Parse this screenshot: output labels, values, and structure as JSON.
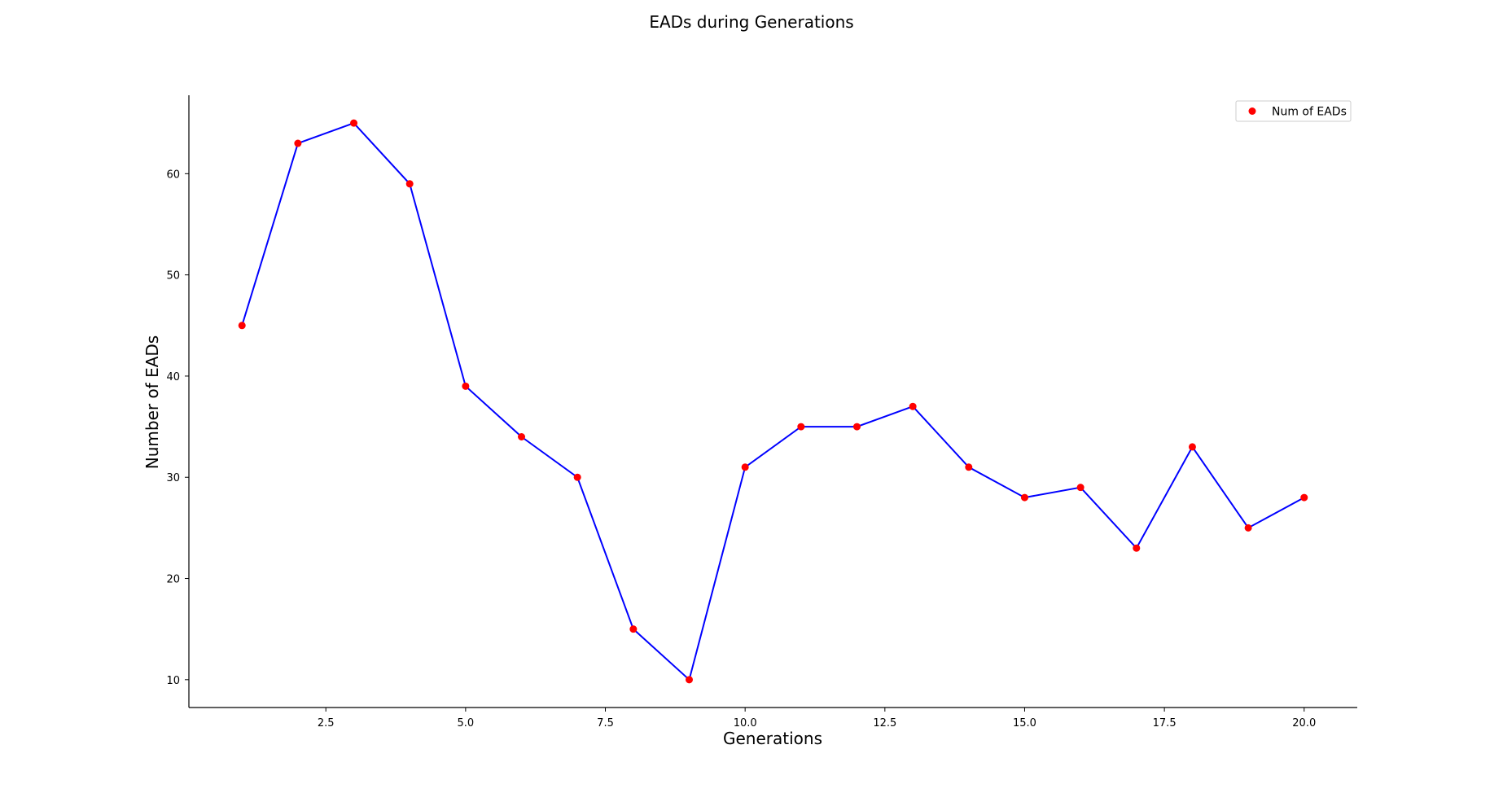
{
  "chart_data": {
    "type": "line",
    "title": "EADs during Generations",
    "xlabel": "Generations",
    "ylabel": "Number of EADs",
    "x": [
      1,
      2,
      3,
      4,
      5,
      6,
      7,
      8,
      9,
      10,
      11,
      12,
      13,
      14,
      15,
      16,
      17,
      18,
      19,
      20
    ],
    "series": [
      {
        "name": "Num of EADs",
        "values": [
          45,
          63,
          65,
          59,
          39,
          34,
          30,
          15,
          10,
          31,
          35,
          35,
          37,
          31,
          28,
          29,
          23,
          33,
          25,
          28
        ],
        "line_color": "#0000ff",
        "marker_color": "#ff0000"
      }
    ],
    "xlim": [
      0.05,
      20.95
    ],
    "ylim": [
      7.25,
      67.75
    ],
    "xticks": [
      2.5,
      5.0,
      7.5,
      10.0,
      12.5,
      15.0,
      17.5,
      20.0
    ],
    "xtick_labels": [
      "2.5",
      "5.0",
      "7.5",
      "10.0",
      "12.5",
      "15.0",
      "17.5",
      "20.0"
    ],
    "yticks": [
      10,
      20,
      30,
      40,
      50,
      60
    ],
    "ytick_labels": [
      "10",
      "20",
      "30",
      "40",
      "50",
      "60"
    ],
    "grid": false,
    "legend_position": "top-right",
    "spines": [
      "left",
      "bottom"
    ]
  }
}
